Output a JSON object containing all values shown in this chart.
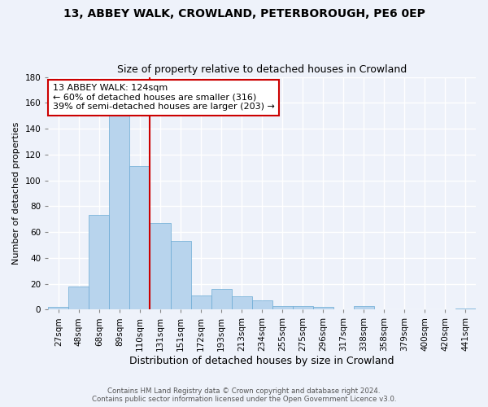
{
  "title": "13, ABBEY WALK, CROWLAND, PETERBOROUGH, PE6 0EP",
  "subtitle": "Size of property relative to detached houses in Crowland",
  "xlabel": "Distribution of detached houses by size in Crowland",
  "ylabel": "Number of detached properties",
  "bin_labels": [
    "27sqm",
    "48sqm",
    "68sqm",
    "89sqm",
    "110sqm",
    "131sqm",
    "151sqm",
    "172sqm",
    "193sqm",
    "213sqm",
    "234sqm",
    "255sqm",
    "275sqm",
    "296sqm",
    "317sqm",
    "338sqm",
    "358sqm",
    "379sqm",
    "400sqm",
    "420sqm",
    "441sqm"
  ],
  "bar_heights": [
    2,
    18,
    73,
    150,
    111,
    67,
    53,
    11,
    16,
    10,
    7,
    3,
    3,
    2,
    0,
    3,
    0,
    0,
    0,
    0,
    1
  ],
  "bar_color": "#b8d4ed",
  "bar_edge_color": "#6aaad4",
  "ylim": [
    0,
    180
  ],
  "yticks": [
    0,
    20,
    40,
    60,
    80,
    100,
    120,
    140,
    160,
    180
  ],
  "vline_x": 5,
  "vline_color": "#cc0000",
  "annotation_text": "13 ABBEY WALK: 124sqm\n← 60% of detached houses are smaller (316)\n39% of semi-detached houses are larger (203) →",
  "annotation_box_color": "#ffffff",
  "annotation_box_edge": "#cc0000",
  "footer_line1": "Contains HM Land Registry data © Crown copyright and database right 2024.",
  "footer_line2": "Contains public sector information licensed under the Open Government Licence v3.0.",
  "bg_color": "#eef2fa",
  "grid_color": "#ffffff",
  "title_fontsize": 10,
  "subtitle_fontsize": 9,
  "ylabel_fontsize": 8,
  "xlabel_fontsize": 9,
  "tick_fontsize": 7.5,
  "annot_fontsize": 8
}
